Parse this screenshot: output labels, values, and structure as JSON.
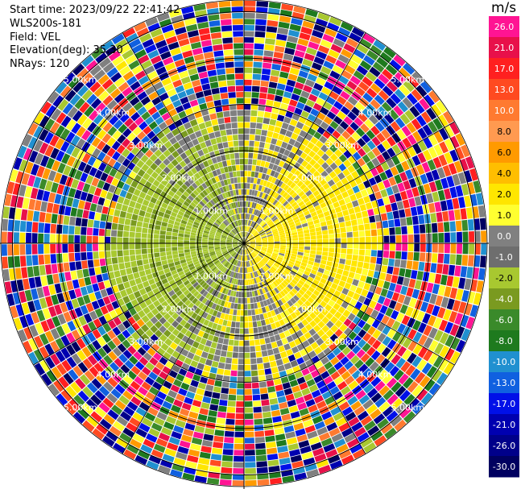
{
  "header": {
    "start_time": "Start time: 2023/09/22 22:41:42",
    "instrument": "WLS200s-181",
    "field": "Field: VEL",
    "elevation": "Elevation(deg): 35.30",
    "nrays": "NRays: 120"
  },
  "chart_data": {
    "type": "ppi",
    "field": "VEL",
    "units": "m/s",
    "nrays": 120,
    "elevation_deg": 35.3,
    "range_rings_km": [
      1.0,
      2.0,
      3.0,
      4.0,
      5.0
    ],
    "ring_labels": [
      "1.00km",
      "2.00km",
      "3.00km",
      "4.00km",
      "5.00km"
    ],
    "colorbar": {
      "unit": "m/s",
      "ticks": [
        "26.0",
        "21.0",
        "17.0",
        "13.0",
        "10.0",
        "8.0",
        "6.0",
        "4.0",
        "2.0",
        "1.0",
        "0.0",
        "-1.0",
        "-2.0",
        "-4.0",
        "-6.0",
        "-8.0",
        "-10.0",
        "-13.0",
        "-17.0",
        "-21.0",
        "-26.0",
        "-30.0"
      ],
      "colors": [
        "#ff1493",
        "#e8104a",
        "#ff2020",
        "#ff4a20",
        "#ff7a30",
        "#ff9a50",
        "#ff9a00",
        "#ffbe00",
        "#ffe600",
        "#ffff30",
        "#808080",
        "#6e6e6e",
        "#a8c830",
        "#7a9a20",
        "#3a8a2a",
        "#1e7a1e",
        "#2090d0",
        "#1060e0",
        "#0010e8",
        "#0000b0",
        "#00008a",
        "#000060"
      ]
    }
  }
}
